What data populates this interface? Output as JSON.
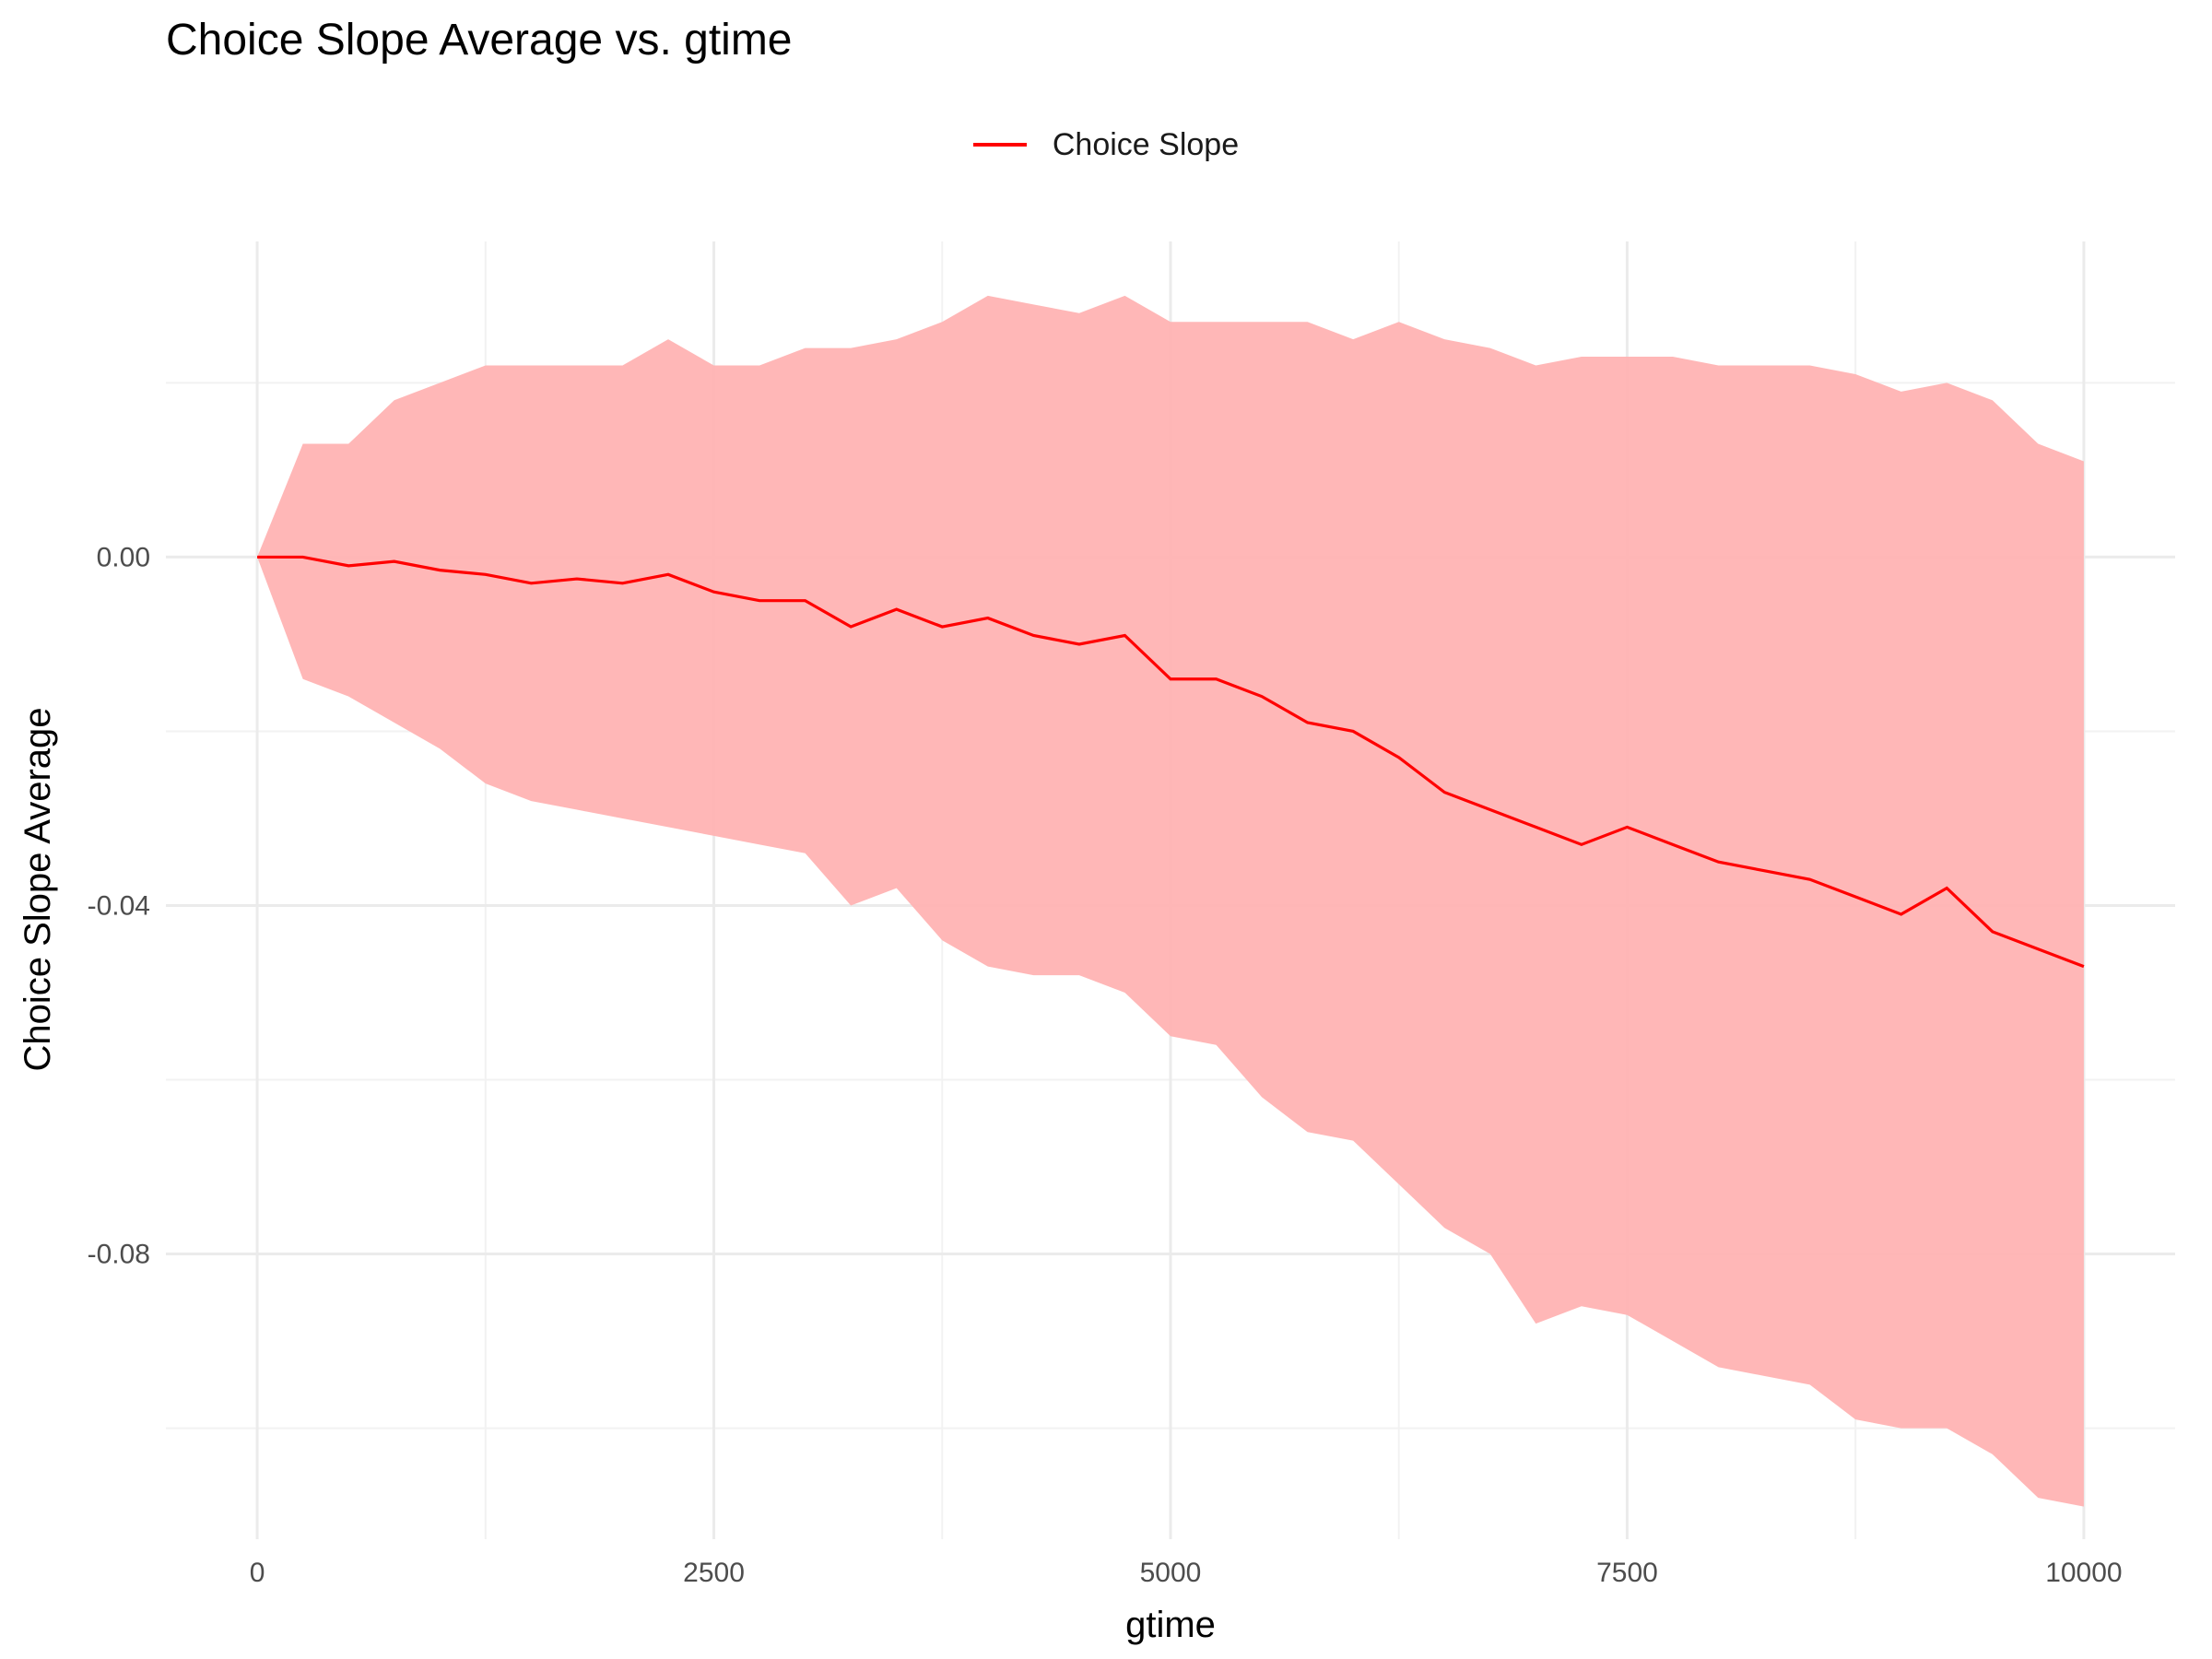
{
  "chart_data": {
    "type": "line",
    "title": "Choice Slope Average vs. gtime",
    "xlabel": "gtime",
    "ylabel": "Choice Slope Average",
    "xlim": [
      -500,
      10500
    ],
    "ylim": [
      -0.1138,
      0.0375
    ],
    "x_ticks": [
      0,
      2500,
      5000,
      7500,
      10000
    ],
    "x_tick_labels": [
      "0",
      "2500",
      "5000",
      "7500",
      "10000"
    ],
    "y_ticks": [
      0.0,
      -0.04,
      -0.08
    ],
    "y_tick_labels": [
      "0.00",
      "-0.04",
      "-0.08"
    ],
    "x_minor_ticks": [
      1250,
      3750,
      6250,
      8750
    ],
    "y_minor_ticks": [
      0.02,
      -0.02,
      -0.06,
      -0.1
    ],
    "grid": true,
    "legend": {
      "position": "top",
      "entries": [
        "Choice Slope"
      ]
    },
    "series": [
      {
        "name": "Choice Slope",
        "color": "#ff0000",
        "ribbon_color": "#ffb3b3",
        "x": [
          0,
          250,
          500,
          750,
          1000,
          1250,
          1500,
          1750,
          2000,
          2250,
          2500,
          2750,
          3000,
          3250,
          3500,
          3750,
          4000,
          4250,
          4500,
          4750,
          5000,
          5250,
          5500,
          5750,
          6000,
          6250,
          6500,
          6750,
          7000,
          7250,
          7500,
          7750,
          8000,
          8250,
          8500,
          8750,
          9000,
          9250,
          9500,
          9750,
          10000
        ],
        "y": [
          0.0,
          0.0,
          -0.001,
          -0.0005,
          -0.0015,
          -0.002,
          -0.003,
          -0.0025,
          -0.003,
          -0.002,
          -0.004,
          -0.005,
          -0.005,
          -0.008,
          -0.006,
          -0.008,
          -0.007,
          -0.009,
          -0.01,
          -0.009,
          -0.014,
          -0.014,
          -0.016,
          -0.019,
          -0.02,
          -0.023,
          -0.027,
          -0.029,
          -0.031,
          -0.033,
          -0.031,
          -0.033,
          -0.035,
          -0.036,
          -0.037,
          -0.039,
          -0.041,
          -0.038,
          -0.043,
          -0.045,
          -0.047
        ],
        "upper": [
          0.0,
          0.013,
          0.013,
          0.018,
          0.02,
          0.022,
          0.022,
          0.022,
          0.022,
          0.025,
          0.022,
          0.022,
          0.024,
          0.024,
          0.025,
          0.027,
          0.03,
          0.029,
          0.028,
          0.03,
          0.027,
          0.027,
          0.027,
          0.027,
          0.025,
          0.027,
          0.025,
          0.024,
          0.022,
          0.023,
          0.023,
          0.023,
          0.022,
          0.022,
          0.022,
          0.021,
          0.019,
          0.02,
          0.018,
          0.013,
          0.011
        ],
        "lower": [
          0.0,
          -0.014,
          -0.016,
          -0.019,
          -0.022,
          -0.026,
          -0.028,
          -0.029,
          -0.03,
          -0.031,
          -0.032,
          -0.033,
          -0.034,
          -0.04,
          -0.038,
          -0.044,
          -0.047,
          -0.048,
          -0.048,
          -0.05,
          -0.055,
          -0.056,
          -0.062,
          -0.066,
          -0.067,
          -0.072,
          -0.077,
          -0.08,
          -0.088,
          -0.086,
          -0.087,
          -0.09,
          -0.093,
          -0.094,
          -0.095,
          -0.099,
          -0.1,
          -0.1,
          -0.103,
          -0.108,
          -0.109
        ]
      }
    ]
  }
}
